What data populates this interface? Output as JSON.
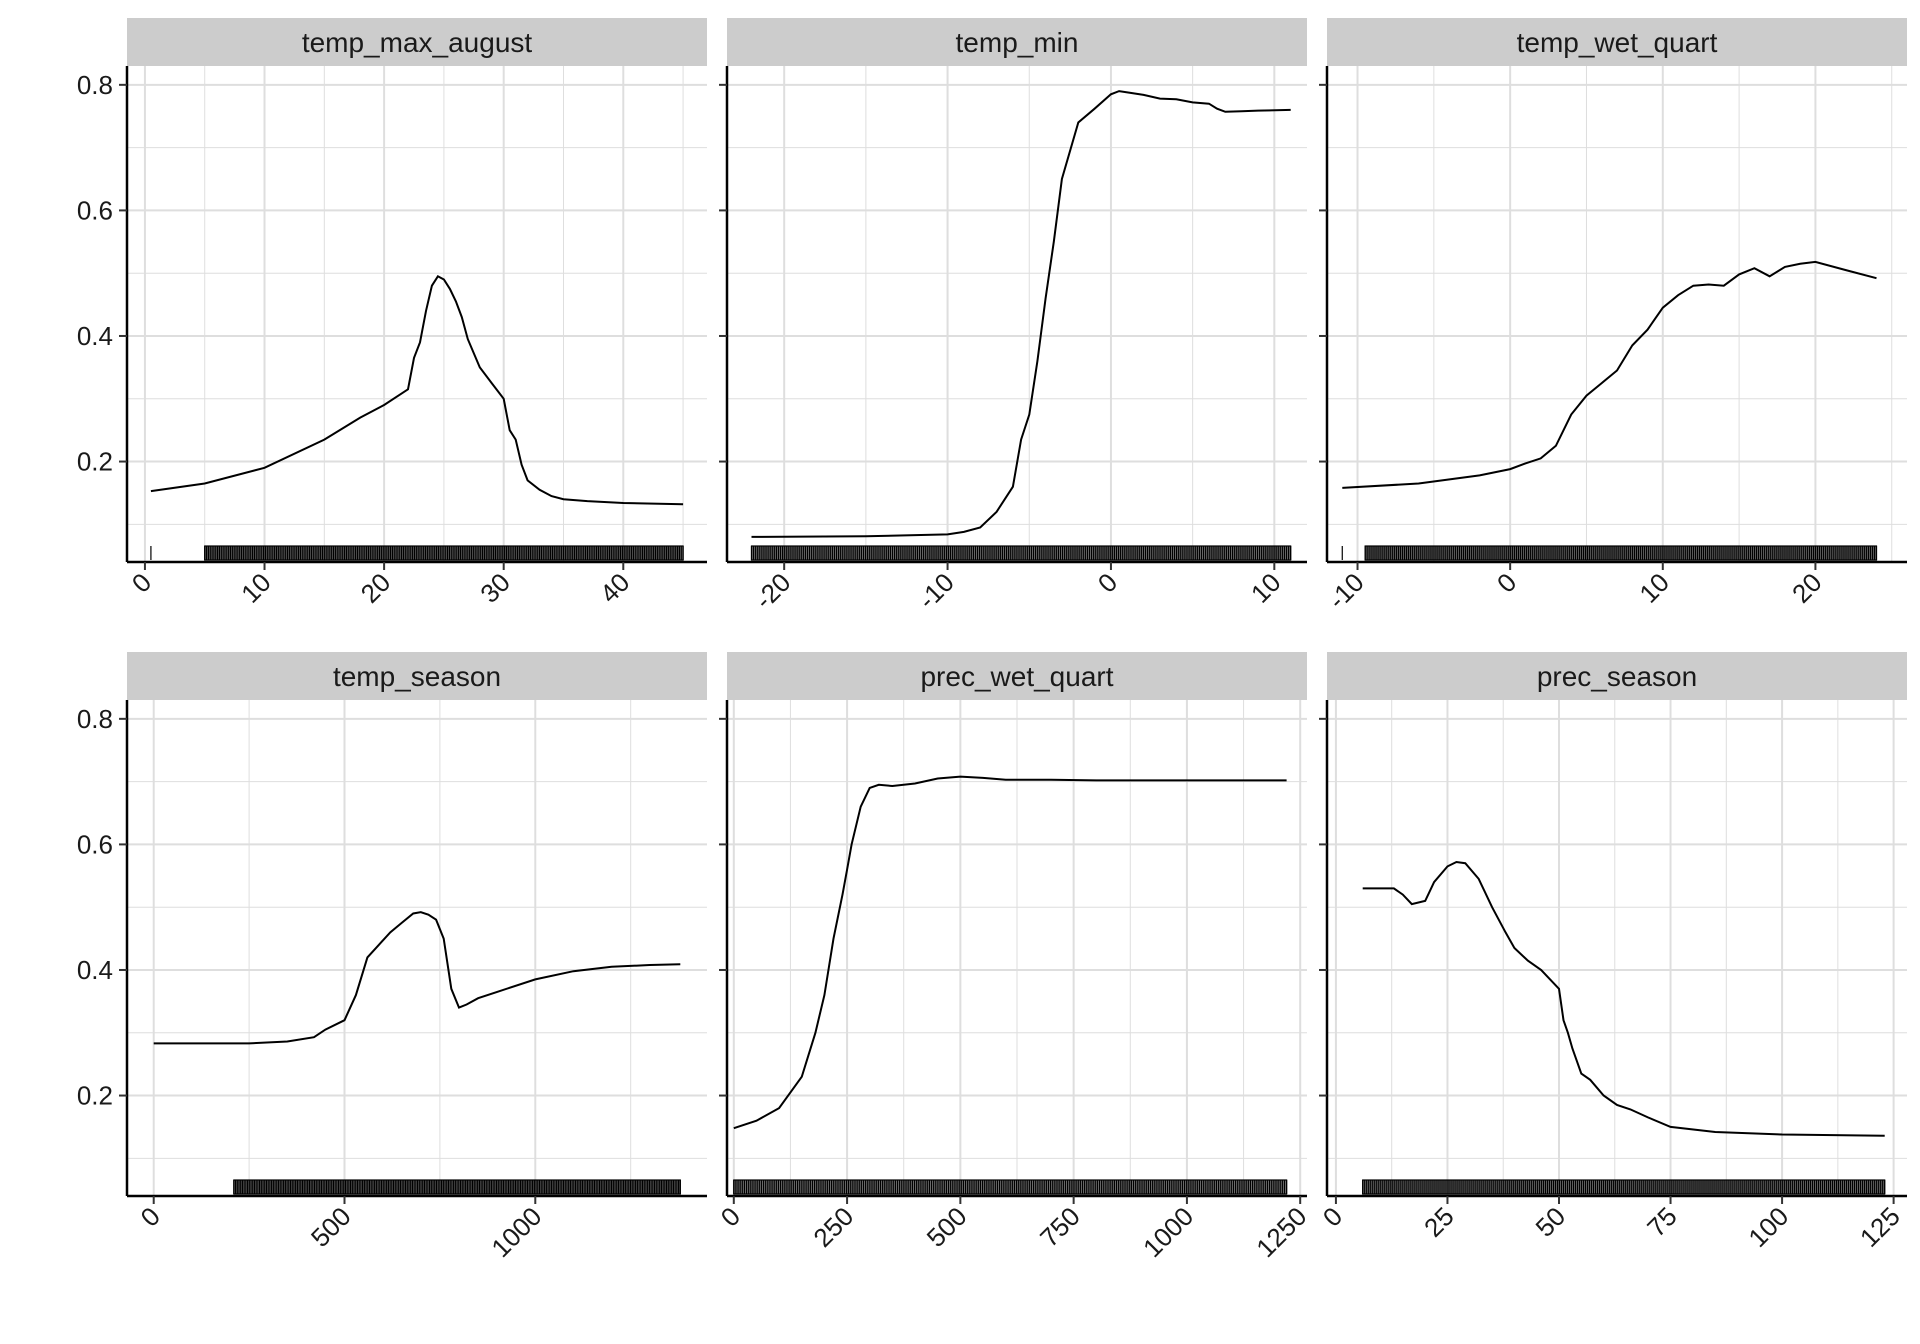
{
  "chart_data": [
    {
      "type": "line",
      "title": "temp_max_august",
      "xlim": [
        -1.5,
        47
      ],
      "ylim": [
        0.04,
        0.83
      ],
      "xticks": [
        0,
        10,
        20,
        30,
        40
      ],
      "xtick_labels": [
        "0",
        "10",
        "20",
        "30",
        "40"
      ],
      "yticks": [
        0.2,
        0.4,
        0.6,
        0.8
      ],
      "ytick_labels": [
        "0.2",
        "0.4",
        "0.6",
        "0.8"
      ],
      "rug": {
        "min": 5,
        "max": 45,
        "outliers": [
          0.5
        ]
      },
      "x": [
        0.5,
        5,
        10,
        15,
        18,
        20,
        22,
        22.5,
        23,
        23.5,
        24,
        24.5,
        25,
        25.5,
        26,
        26.5,
        27,
        28,
        29,
        30,
        30.5,
        31,
        31.5,
        32,
        33,
        34,
        35,
        37,
        40,
        45
      ],
      "y": [
        0.153,
        0.165,
        0.19,
        0.235,
        0.27,
        0.29,
        0.315,
        0.365,
        0.39,
        0.44,
        0.48,
        0.495,
        0.49,
        0.475,
        0.455,
        0.43,
        0.395,
        0.35,
        0.325,
        0.3,
        0.25,
        0.235,
        0.195,
        0.17,
        0.155,
        0.145,
        0.14,
        0.137,
        0.134,
        0.132
      ]
    },
    {
      "type": "line",
      "title": "temp_min",
      "xlim": [
        -23.5,
        12
      ],
      "ylim": [
        0.04,
        0.83
      ],
      "xticks": [
        -20,
        -10,
        0,
        10
      ],
      "xtick_labels": [
        "-20",
        "-10",
        "0",
        "10"
      ],
      "yticks": [
        0.2,
        0.4,
        0.6,
        0.8
      ],
      "ytick_labels": [
        "0.2",
        "0.4",
        "0.6",
        "0.8"
      ],
      "rug": {
        "min": -22,
        "max": 11
      },
      "x": [
        -22,
        -15,
        -10,
        -9,
        -8,
        -7,
        -6,
        -5.5,
        -5,
        -4.5,
        -4,
        -3.5,
        -3,
        -2,
        -1,
        0,
        0.5,
        1,
        2,
        3,
        4,
        5,
        6,
        6.5,
        7,
        8,
        9,
        11
      ],
      "y": [
        0.08,
        0.081,
        0.084,
        0.088,
        0.095,
        0.12,
        0.16,
        0.235,
        0.275,
        0.36,
        0.46,
        0.55,
        0.65,
        0.74,
        0.762,
        0.785,
        0.79,
        0.788,
        0.784,
        0.778,
        0.777,
        0.772,
        0.77,
        0.762,
        0.757,
        0.758,
        0.759,
        0.76
      ]
    },
    {
      "type": "line",
      "title": "temp_wet_quart",
      "xlim": [
        -12,
        26
      ],
      "ylim": [
        0.04,
        0.83
      ],
      "xticks": [
        -10,
        0,
        10,
        20
      ],
      "xtick_labels": [
        "-10",
        "0",
        "10",
        "20"
      ],
      "yticks": [
        0.2,
        0.4,
        0.6,
        0.8
      ],
      "ytick_labels": [
        "0.2",
        "0.4",
        "0.6",
        "0.8"
      ],
      "rug": {
        "min": -9.5,
        "max": 24,
        "outliers": [
          -11
        ]
      },
      "x": [
        -11,
        -6,
        -2,
        0,
        1,
        2,
        3,
        4,
        5,
        6,
        7,
        8,
        9,
        10,
        11,
        12,
        13,
        14,
        15,
        16,
        17,
        18,
        19,
        20,
        22,
        24
      ],
      "y": [
        0.158,
        0.165,
        0.178,
        0.188,
        0.197,
        0.205,
        0.225,
        0.275,
        0.305,
        0.325,
        0.345,
        0.385,
        0.41,
        0.445,
        0.465,
        0.48,
        0.482,
        0.48,
        0.498,
        0.508,
        0.495,
        0.51,
        0.515,
        0.518,
        0.505,
        0.492
      ]
    },
    {
      "type": "line",
      "title": "temp_season",
      "xlim": [
        -70,
        1450
      ],
      "ylim": [
        0.04,
        0.83
      ],
      "xticks": [
        0,
        500,
        1000
      ],
      "xtick_labels": [
        "0",
        "500",
        "1000"
      ],
      "yticks": [
        0.2,
        0.4,
        0.6,
        0.8
      ],
      "ytick_labels": [
        "0.2",
        "0.4",
        "0.6",
        "0.8"
      ],
      "rug": {
        "min": 210,
        "max": 1380
      },
      "x": [
        0,
        250,
        350,
        420,
        450,
        500,
        530,
        560,
        590,
        620,
        650,
        680,
        700,
        720,
        740,
        760,
        780,
        800,
        820,
        850,
        900,
        1000,
        1100,
        1200,
        1300,
        1380
      ],
      "y": [
        0.283,
        0.283,
        0.286,
        0.293,
        0.305,
        0.32,
        0.36,
        0.42,
        0.44,
        0.46,
        0.475,
        0.49,
        0.492,
        0.488,
        0.48,
        0.45,
        0.37,
        0.34,
        0.345,
        0.355,
        0.365,
        0.385,
        0.398,
        0.405,
        0.408,
        0.409
      ]
    },
    {
      "type": "line",
      "title": "prec_wet_quart",
      "xlim": [
        -15,
        1265
      ],
      "ylim": [
        0.04,
        0.83
      ],
      "xticks": [
        0,
        250,
        500,
        750,
        1000,
        1250
      ],
      "xtick_labels": [
        "0",
        "250",
        "500",
        "750",
        "1000",
        "1250"
      ],
      "yticks": [
        0.2,
        0.4,
        0.6,
        0.8
      ],
      "ytick_labels": [
        "0.2",
        "0.4",
        "0.6",
        "0.8"
      ],
      "rug": {
        "min": 0,
        "max": 1220
      },
      "x": [
        0,
        50,
        100,
        150,
        180,
        200,
        220,
        240,
        250,
        260,
        280,
        300,
        320,
        350,
        400,
        450,
        500,
        550,
        600,
        700,
        800,
        1000,
        1220
      ],
      "y": [
        0.148,
        0.16,
        0.18,
        0.23,
        0.3,
        0.36,
        0.45,
        0.52,
        0.56,
        0.6,
        0.66,
        0.69,
        0.695,
        0.693,
        0.697,
        0.705,
        0.708,
        0.706,
        0.703,
        0.703,
        0.702,
        0.702,
        0.702
      ]
    },
    {
      "type": "line",
      "title": "prec_season",
      "xlim": [
        -2,
        128
      ],
      "ylim": [
        0.04,
        0.83
      ],
      "xticks": [
        0,
        25,
        50,
        75,
        100,
        125
      ],
      "xtick_labels": [
        "0",
        "25",
        "50",
        "75",
        "100",
        "125"
      ],
      "yticks": [
        0.2,
        0.4,
        0.6,
        0.8
      ],
      "ytick_labels": [
        "0.2",
        "0.4",
        "0.6",
        "0.8"
      ],
      "rug": {
        "min": 6,
        "max": 123
      },
      "x": [
        6,
        13,
        15,
        17,
        20,
        22,
        25,
        27,
        29,
        32,
        35,
        38,
        40,
        43,
        46,
        48,
        50,
        51,
        52,
        53,
        55,
        57,
        60,
        63,
        66,
        70,
        75,
        85,
        100,
        123
      ],
      "y": [
        0.53,
        0.53,
        0.52,
        0.505,
        0.51,
        0.54,
        0.565,
        0.572,
        0.57,
        0.545,
        0.5,
        0.46,
        0.435,
        0.415,
        0.4,
        0.385,
        0.37,
        0.32,
        0.3,
        0.275,
        0.235,
        0.225,
        0.2,
        0.185,
        0.178,
        0.165,
        0.15,
        0.142,
        0.138,
        0.136
      ]
    }
  ]
}
